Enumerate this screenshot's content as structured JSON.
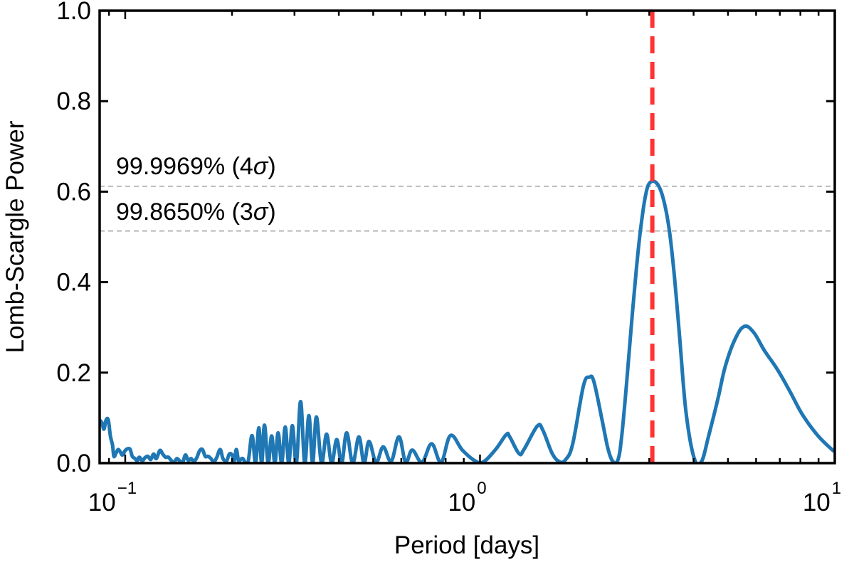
{
  "chart_data": {
    "type": "line",
    "xlabel": "Period [days]",
    "ylabel": "Lomb-Scargle Power",
    "xscale": "log",
    "xlim": [
      0.0847,
      10
    ],
    "ylim": [
      0,
      1.0
    ],
    "grid": false,
    "xticks": [
      {
        "value": 0.1,
        "base": "10",
        "exp": "−1"
      },
      {
        "value": 1,
        "base": "10",
        "exp": "0"
      },
      {
        "value": 10,
        "base": "10",
        "exp": "1"
      }
    ],
    "yticks": [
      {
        "value": 0.0,
        "label": "0.0"
      },
      {
        "value": 0.2,
        "label": "0.2"
      },
      {
        "value": 0.4,
        "label": "0.4"
      },
      {
        "value": 0.6,
        "label": "0.6"
      },
      {
        "value": 0.8,
        "label": "0.8"
      },
      {
        "value": 1.0,
        "label": "1.0"
      }
    ],
    "series": [
      {
        "color": "#1f77b4",
        "points": [
          [
            0.0847,
            0.095
          ],
          [
            0.0859,
            0.09
          ],
          [
            0.0871,
            0.075
          ],
          [
            0.0883,
            0.095
          ],
          [
            0.0896,
            0.095
          ],
          [
            0.0908,
            0.06
          ],
          [
            0.0921,
            0.04
          ],
          [
            0.0929,
            0.015
          ],
          [
            0.0942,
            0.022
          ],
          [
            0.0955,
            0.03
          ],
          [
            0.0968,
            0.025
          ],
          [
            0.0982,
            0.018
          ],
          [
            0.1,
            0.028
          ],
          [
            0.1019,
            0.032
          ],
          [
            0.1033,
            0.03
          ],
          [
            0.1047,
            0.015
          ],
          [
            0.1066,
            0.01
          ],
          [
            0.1081,
            0.005
          ],
          [
            0.1096,
            0.013
          ],
          [
            0.1117,
            0.005
          ],
          [
            0.1137,
            0.012
          ],
          [
            0.1159,
            0.015
          ],
          [
            0.118,
            0.008
          ],
          [
            0.1202,
            0.02
          ],
          [
            0.1224,
            0.01
          ],
          [
            0.1252,
            0.028
          ],
          [
            0.1276,
            0.02
          ],
          [
            0.1299,
            0.013
          ],
          [
            0.1323,
            0.013
          ],
          [
            0.1348,
            0.006
          ],
          [
            0.1373,
            0.002
          ],
          [
            0.1398,
            0.01
          ],
          [
            0.1424,
            0.005
          ],
          [
            0.1451,
            0.001
          ],
          [
            0.1478,
            0.018
          ],
          [
            0.1505,
            0.006
          ],
          [
            0.1533,
            0.01
          ],
          [
            0.1562,
            0.004
          ],
          [
            0.1591,
            0.012
          ],
          [
            0.162,
            0.027
          ],
          [
            0.1651,
            0.03
          ],
          [
            0.1681,
            0.015
          ],
          [
            0.1713,
            0.015
          ],
          [
            0.1744,
            0.01
          ],
          [
            0.1777,
            0.003
          ],
          [
            0.181,
            0.012
          ],
          [
            0.1852,
            0.03
          ],
          [
            0.1886,
            0.01
          ],
          [
            0.193,
            0.005
          ],
          [
            0.1965,
            0.02
          ],
          [
            0.2001,
            0.018
          ],
          [
            0.2029,
            0.005
          ],
          [
            0.2057,
            0.03
          ],
          [
            0.2086,
            0.005
          ],
          [
            0.2115,
            0.008
          ],
          [
            0.2145,
            0.01
          ],
          [
            0.2215,
            0.0
          ],
          [
            0.2277,
            0.061
          ],
          [
            0.233,
            0.0
          ],
          [
            0.238,
            0.078
          ],
          [
            0.2424,
            0.0
          ],
          [
            0.2469,
            0.084
          ],
          [
            0.2527,
            0.0
          ],
          [
            0.2586,
            0.06
          ],
          [
            0.2641,
            0.0
          ],
          [
            0.2698,
            0.067
          ],
          [
            0.2761,
            0.0
          ],
          [
            0.2825,
            0.08
          ],
          [
            0.2891,
            0.0
          ],
          [
            0.2958,
            0.083
          ],
          [
            0.3038,
            0.0
          ],
          [
            0.3121,
            0.136
          ],
          [
            0.3206,
            0.0
          ],
          [
            0.3293,
            0.105
          ],
          [
            0.3375,
            0.0
          ],
          [
            0.3458,
            0.102
          ],
          [
            0.3575,
            0.0
          ],
          [
            0.3694,
            0.064
          ],
          [
            0.3818,
            0.0
          ],
          [
            0.3946,
            0.052
          ],
          [
            0.4075,
            0.0
          ],
          [
            0.4208,
            0.067
          ],
          [
            0.4377,
            0.0
          ],
          [
            0.4556,
            0.058
          ],
          [
            0.471,
            0.0
          ],
          [
            0.4866,
            0.048
          ],
          [
            0.5096,
            0.002
          ],
          [
            0.5335,
            0.036
          ],
          [
            0.5616,
            0.004
          ],
          [
            0.591,
            0.058
          ],
          [
            0.6171,
            0.002
          ],
          [
            0.6442,
            0.029
          ],
          [
            0.6861,
            0.002
          ],
          [
            0.7305,
            0.043
          ],
          [
            0.7767,
            0.002
          ],
          [
            0.8256,
            0.061
          ],
          [
            0.8914,
            0.029
          ],
          [
            0.9683,
            0.005
          ],
          [
            1.023,
            0.003
          ],
          [
            1.106,
            0.03
          ],
          [
            1.186,
            0.063
          ],
          [
            1.213,
            0.058
          ],
          [
            1.288,
            0.021
          ],
          [
            1.33,
            0.03
          ],
          [
            1.451,
            0.082
          ],
          [
            1.505,
            0.072
          ],
          [
            1.598,
            0.021
          ],
          [
            1.677,
            0.003
          ],
          [
            1.744,
            0.008
          ],
          [
            1.826,
            0.043
          ],
          [
            1.956,
            0.17
          ],
          [
            2.034,
            0.19
          ],
          [
            2.096,
            0.179
          ],
          [
            2.215,
            0.09
          ],
          [
            2.298,
            0.03
          ],
          [
            2.373,
            0.003
          ],
          [
            2.45,
            0.008
          ],
          [
            2.507,
            0.058
          ],
          [
            2.585,
            0.17
          ],
          [
            2.686,
            0.328
          ],
          [
            2.771,
            0.444
          ],
          [
            2.836,
            0.518
          ],
          [
            2.925,
            0.59
          ],
          [
            3.013,
            0.62
          ],
          [
            3.155,
            0.618
          ],
          [
            3.284,
            0.585
          ],
          [
            3.412,
            0.518
          ],
          [
            3.521,
            0.423
          ],
          [
            3.656,
            0.276
          ],
          [
            3.802,
            0.117
          ],
          [
            4.007,
            0.013
          ],
          [
            4.206,
            0.003
          ],
          [
            4.403,
            0.058
          ],
          [
            4.686,
            0.143
          ],
          [
            4.905,
            0.212
          ],
          [
            5.22,
            0.272
          ],
          [
            5.553,
            0.302
          ],
          [
            5.906,
            0.289
          ],
          [
            6.331,
            0.249
          ],
          [
            6.89,
            0.207
          ],
          [
            7.504,
            0.156
          ],
          [
            8.093,
            0.108
          ],
          [
            8.955,
            0.061
          ],
          [
            9.91,
            0.027
          ]
        ]
      }
    ],
    "hlines": [
      {
        "y": 0.612,
        "label": "99.9969% (4",
        "sigma": "σ",
        "close": ")",
        "color": "#aaaaaa",
        "style": "dashed"
      },
      {
        "y": 0.513,
        "label": "99.8650% (3",
        "sigma": "σ",
        "close": ")",
        "color": "#aaaaaa",
        "style": "dashed"
      }
    ],
    "vline": {
      "x": 3.06,
      "color": "#ff3333",
      "style": "dashed"
    }
  }
}
